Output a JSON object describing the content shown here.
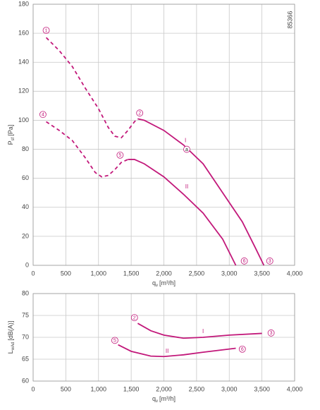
{
  "chart_data": [
    {
      "type": "line",
      "id_text": "85366",
      "ylabel": {
        "main": "P",
        "sub": "sf",
        "unit": "[Pa]"
      },
      "xlabel": {
        "main": "q",
        "sub": "v",
        "unit": "[m³/h]"
      },
      "xlim": [
        0,
        4000
      ],
      "ylim": [
        0,
        180
      ],
      "xticks": [
        0,
        500,
        {
          "value": 1000,
          "label": "1,000"
        },
        {
          "value": 1500,
          "label": "1,500"
        },
        {
          "value": 2000,
          "label": "2,000"
        },
        {
          "value": 2500,
          "label": "2,500"
        },
        {
          "value": 3000,
          "label": "3,000"
        },
        {
          "value": 3500,
          "label": "3,500"
        },
        {
          "value": 4000,
          "label": "4,000"
        }
      ],
      "yticks": [
        0,
        20,
        40,
        60,
        80,
        100,
        120,
        140,
        160,
        180
      ],
      "grid": true,
      "color": "#c2187a",
      "series": [
        {
          "dashed": true,
          "x": [
            200,
            400,
            600,
            800,
            1000,
            1150,
            1250,
            1350,
            1450,
            1550,
            1600
          ],
          "values": [
            157,
            148,
            137,
            122,
            108,
            95,
            89,
            88,
            93,
            99,
            101
          ]
        },
        {
          "name": "I",
          "label_at": [
            2330,
            86
          ],
          "x": [
            1600,
            1700,
            2000,
            2300,
            2600,
            2900,
            3200,
            3400,
            3530
          ],
          "values": [
            101,
            100,
            93,
            83,
            70,
            50,
            30,
            12,
            0
          ]
        },
        {
          "dashed": true,
          "x": [
            200,
            400,
            600,
            800,
            950,
            1050,
            1150,
            1250,
            1350,
            1450
          ],
          "values": [
            99,
            93,
            86,
            74,
            64,
            61,
            62,
            66,
            71,
            73
          ]
        },
        {
          "name": "II",
          "label_at": [
            2350,
            54
          ],
          "x": [
            1450,
            1550,
            1700,
            2000,
            2300,
            2600,
            2900,
            3100
          ],
          "values": [
            73,
            73,
            70,
            61,
            49,
            36,
            18,
            0
          ]
        }
      ],
      "annotations": [
        {
          "text": "1",
          "x": 200,
          "y": 162
        },
        {
          "text": "2",
          "x": 1630,
          "y": 105
        },
        {
          "text": "3",
          "x": 3620,
          "y": 3
        },
        {
          "text": "4",
          "x": 150,
          "y": 104
        },
        {
          "text": "5",
          "x": 1330,
          "y": 76
        },
        {
          "text": "6",
          "x": 3230,
          "y": 3
        },
        {
          "text": "a",
          "x": 2350,
          "y": 80
        }
      ]
    },
    {
      "type": "line",
      "ylabel": {
        "main": "L",
        "sub": "wAd",
        "unit": "[dB(A)]"
      },
      "xlabel": {
        "main": "q",
        "sub": "v",
        "unit": "[m³/h]"
      },
      "xlim": [
        0,
        4000
      ],
      "ylim": [
        60,
        80
      ],
      "xticks": [
        0,
        500,
        {
          "value": 1000,
          "label": "1,000"
        },
        {
          "value": 1500,
          "label": "1,500"
        },
        {
          "value": 2000,
          "label": "2,000"
        },
        {
          "value": 2500,
          "label": "2,500"
        },
        {
          "value": 3000,
          "label": "3,000"
        },
        {
          "value": 3500,
          "label": "3,500"
        },
        {
          "value": 4000,
          "label": "4,000"
        }
      ],
      "yticks": [
        60,
        65,
        70,
        75,
        80
      ],
      "grid": true,
      "color": "#c2187a",
      "series": [
        {
          "name": "I",
          "label_at": [
            2600,
            71.3
          ],
          "x": [
            1600,
            1800,
            2000,
            2300,
            2600,
            3000,
            3500
          ],
          "values": [
            73.2,
            71.5,
            70.5,
            69.8,
            70.0,
            70.5,
            70.9
          ]
        },
        {
          "name": "II",
          "label_at": [
            2050,
            66.8
          ],
          "x": [
            1300,
            1500,
            1800,
            2000,
            2300,
            2600,
            3100
          ],
          "values": [
            68.3,
            66.8,
            65.7,
            65.6,
            66.0,
            66.6,
            67.5
          ]
        }
      ],
      "annotations": [
        {
          "text": "2",
          "x": 1550,
          "y": 74.5
        },
        {
          "text": "3",
          "x": 3640,
          "y": 71
        },
        {
          "text": "5",
          "x": 1250,
          "y": 69.3
        },
        {
          "text": "6",
          "x": 3200,
          "y": 67.3
        }
      ]
    }
  ]
}
